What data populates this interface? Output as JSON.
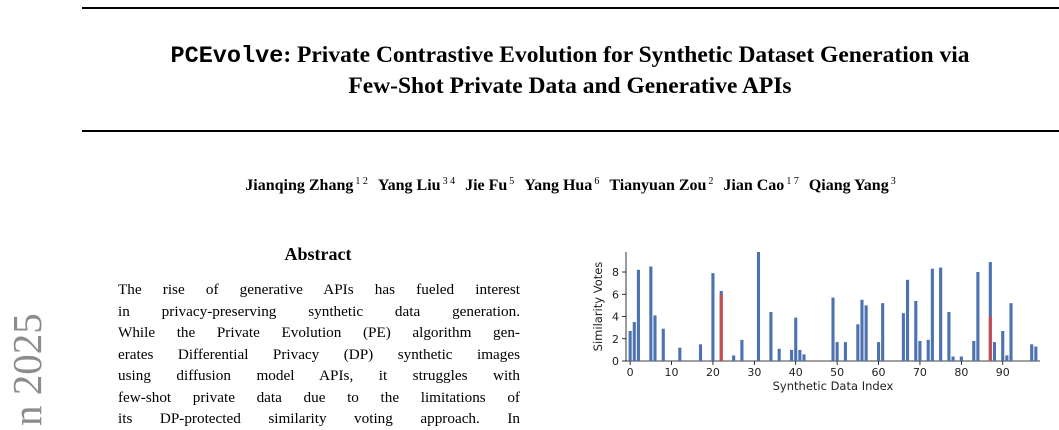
{
  "paper": {
    "title_code": "PCEvolve",
    "title_rest": ": Private Contrastive Evolution for Synthetic Dataset Generation via",
    "title_line2": "Few-Shot Private Data and Generative APIs",
    "authors": [
      {
        "name": "Jianqing Zhang",
        "aff": "1 2"
      },
      {
        "name": "Yang Liu",
        "aff": "3 4"
      },
      {
        "name": "Jie Fu",
        "aff": "5"
      },
      {
        "name": "Yang Hua",
        "aff": "6"
      },
      {
        "name": "Tianyuan Zou",
        "aff": "2"
      },
      {
        "name": "Jian Cao",
        "aff": "1 7"
      },
      {
        "name": "Qiang Yang",
        "aff": "3"
      }
    ],
    "side_stamp": "n 2025",
    "abstract_heading": "Abstract",
    "abstract_lines": [
      "The rise of generative APIs has fueled interest",
      "in privacy-preserving synthetic data generation.",
      "While the Private Evolution (PE) algorithm gen-",
      "erates Differential Privacy (DP) synthetic images",
      "using diffusion model APIs, it struggles with",
      "few-shot private data due to the limitations of",
      "its DP-protected similarity voting approach. In"
    ]
  },
  "colors": {
    "bar": "#4c72b0",
    "highlight": "#c44e52"
  },
  "chart_data": {
    "type": "bar",
    "xlabel": "Synthetic Data Index",
    "ylabel": "Similarity Votes",
    "xticks": [
      0,
      10,
      20,
      30,
      40,
      50,
      60,
      70,
      80,
      90
    ],
    "yticks": [
      0,
      2,
      4,
      6,
      8
    ],
    "xlim": [
      -1,
      99
    ],
    "ylim": [
      0,
      9.8
    ],
    "bars": [
      {
        "x": 0,
        "value": 2.7
      },
      {
        "x": 1,
        "value": 3.5
      },
      {
        "x": 2,
        "value": 8.2
      },
      {
        "x": 5,
        "value": 8.5
      },
      {
        "x": 6,
        "value": 4.1
      },
      {
        "x": 8,
        "value": 2.9
      },
      {
        "x": 12,
        "value": 1.2
      },
      {
        "x": 17,
        "value": 1.5
      },
      {
        "x": 20,
        "value": 7.9
      },
      {
        "x": 22,
        "value": 6.3,
        "highlight": 6.0
      },
      {
        "x": 25,
        "value": 0.5
      },
      {
        "x": 27,
        "value": 1.9
      },
      {
        "x": 31,
        "value": 9.8
      },
      {
        "x": 34,
        "value": 4.4
      },
      {
        "x": 36,
        "value": 1.1
      },
      {
        "x": 39,
        "value": 1.0
      },
      {
        "x": 40,
        "value": 3.9
      },
      {
        "x": 41,
        "value": 1.0
      },
      {
        "x": 42,
        "value": 0.6
      },
      {
        "x": 49,
        "value": 5.7
      },
      {
        "x": 50,
        "value": 1.7
      },
      {
        "x": 52,
        "value": 1.7
      },
      {
        "x": 55,
        "value": 3.3
      },
      {
        "x": 56,
        "value": 5.5
      },
      {
        "x": 57,
        "value": 5.0
      },
      {
        "x": 60,
        "value": 1.7
      },
      {
        "x": 61,
        "value": 5.2
      },
      {
        "x": 66,
        "value": 4.3
      },
      {
        "x": 67,
        "value": 7.3
      },
      {
        "x": 69,
        "value": 5.4
      },
      {
        "x": 70,
        "value": 1.8
      },
      {
        "x": 72,
        "value": 1.9
      },
      {
        "x": 73,
        "value": 8.3
      },
      {
        "x": 75,
        "value": 8.4
      },
      {
        "x": 77,
        "value": 4.4
      },
      {
        "x": 78,
        "value": 0.4
      },
      {
        "x": 80,
        "value": 0.4
      },
      {
        "x": 83,
        "value": 1.8
      },
      {
        "x": 84,
        "value": 8.0
      },
      {
        "x": 87,
        "value": 8.9,
        "highlight": 4.0
      },
      {
        "x": 88,
        "value": 1.7
      },
      {
        "x": 90,
        "value": 2.7
      },
      {
        "x": 91,
        "value": 0.5
      },
      {
        "x": 92,
        "value": 5.2
      },
      {
        "x": 97,
        "value": 1.5
      },
      {
        "x": 98,
        "value": 1.3
      }
    ]
  }
}
